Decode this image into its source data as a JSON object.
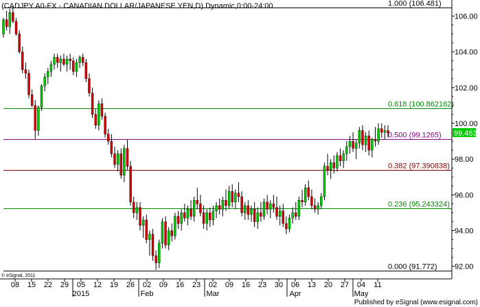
{
  "header": {
    "title": "(CADJPY A0-FX - CANADIAN DOLLAR/JAPANESE YEN,D) Dynamic,0:00-24:00"
  },
  "footer": {
    "copyright": "© eSignal, 2011",
    "published": "Published by eSignal (www.esignal.com)"
  },
  "colors": {
    "up": "#00cc00",
    "down": "#dd0000",
    "wick": "#000000",
    "grid_tick": "#000000",
    "last_price_bg": "#00cc00"
  },
  "chart_data": {
    "type": "candlestick",
    "title": "(CADJPY A0-FX - CANADIAN DOLLAR/JAPANESE YEN,D) Dynamic,0:00-24:00",
    "ylim": [
      91.3,
      106.9
    ],
    "y_ticks": [
      "106.00",
      "104.00",
      "102.00",
      "100.00",
      "98.00",
      "96.00",
      "94.00",
      "92.00"
    ],
    "x_ticks": [
      "08",
      "15",
      "22",
      "29",
      "05",
      "12",
      "19",
      "26",
      "02",
      "09",
      "16",
      "23",
      "02",
      "09",
      "16",
      "23",
      "30",
      "06",
      "13",
      "20",
      "27",
      "04",
      "11"
    ],
    "months": [
      "2015",
      "Feb",
      "Mar",
      "Apr",
      "May"
    ],
    "last_price": "99.463",
    "fib_levels": [
      {
        "label": "1.000 (106.481)",
        "value": 106.481,
        "color": "#000000"
      },
      {
        "label": "0.618 (100.862162)",
        "value": 100.862,
        "color": "#008800"
      },
      {
        "label": "0.500 (99.1265)",
        "value": 99.1265,
        "color": "#880088"
      },
      {
        "label": "0.382 (97.390838)",
        "value": 97.391,
        "color": "#880000"
      },
      {
        "label": "0.236 (95.243324)",
        "value": 95.243,
        "color": "#008800"
      },
      {
        "label": "0.000 (91.772)",
        "value": 91.772,
        "color": "#000000"
      }
    ],
    "candles": [
      [
        105.0,
        105.9,
        104.8,
        105.8
      ],
      [
        105.8,
        106.3,
        105.2,
        105.4
      ],
      [
        105.4,
        106.4,
        105.0,
        106.2
      ],
      [
        106.2,
        106.5,
        105.6,
        105.7
      ],
      [
        105.7,
        105.9,
        104.9,
        105.0
      ],
      [
        105.0,
        105.2,
        103.9,
        104.0
      ],
      [
        104.0,
        104.3,
        102.8,
        103.0
      ],
      [
        103.0,
        103.4,
        102.5,
        102.8
      ],
      [
        102.8,
        103.0,
        101.4,
        101.6
      ],
      [
        101.6,
        101.9,
        100.9,
        101.0
      ],
      [
        101.0,
        101.3,
        99.1,
        99.6
      ],
      [
        99.6,
        101.0,
        99.3,
        100.9
      ],
      [
        100.9,
        102.2,
        100.7,
        102.1
      ],
      [
        102.1,
        102.8,
        101.8,
        102.6
      ],
      [
        102.6,
        103.1,
        102.2,
        102.9
      ],
      [
        102.9,
        103.5,
        102.6,
        103.3
      ],
      [
        103.3,
        103.9,
        103.0,
        103.7
      ],
      [
        103.7,
        103.9,
        103.1,
        103.4
      ],
      [
        103.4,
        103.8,
        102.9,
        103.6
      ],
      [
        103.6,
        103.9,
        103.2,
        103.3
      ],
      [
        103.3,
        103.8,
        102.9,
        103.6
      ],
      [
        103.6,
        103.9,
        103.0,
        103.5
      ],
      [
        103.5,
        103.7,
        102.7,
        102.9
      ],
      [
        102.9,
        103.6,
        102.6,
        103.4
      ],
      [
        103.4,
        103.8,
        103.1,
        103.7
      ],
      [
        103.7,
        103.9,
        103.2,
        103.4
      ],
      [
        103.4,
        103.6,
        102.3,
        102.5
      ],
      [
        102.5,
        102.8,
        101.5,
        101.7
      ],
      [
        101.7,
        102.0,
        100.3,
        100.5
      ],
      [
        100.5,
        100.8,
        99.7,
        99.9
      ],
      [
        99.9,
        101.3,
        99.6,
        101.1
      ],
      [
        101.1,
        101.4,
        100.2,
        100.4
      ],
      [
        100.4,
        100.6,
        99.2,
        99.4
      ],
      [
        99.4,
        99.7,
        98.8,
        99.0
      ],
      [
        99.0,
        99.4,
        98.1,
        98.3
      ],
      [
        98.3,
        98.7,
        97.5,
        97.7
      ],
      [
        97.7,
        98.5,
        97.3,
        98.3
      ],
      [
        98.3,
        98.6,
        96.9,
        97.1
      ],
      [
        97.1,
        98.8,
        96.7,
        98.6
      ],
      [
        98.6,
        99.1,
        97.4,
        97.6
      ],
      [
        97.6,
        97.9,
        95.4,
        95.6
      ],
      [
        95.6,
        95.9,
        94.7,
        95.0
      ],
      [
        95.0,
        95.6,
        94.6,
        95.3
      ],
      [
        95.3,
        95.6,
        94.0,
        94.3
      ],
      [
        94.3,
        94.8,
        93.6,
        94.6
      ],
      [
        94.6,
        94.9,
        93.3,
        93.5
      ],
      [
        93.5,
        94.0,
        92.6,
        93.8
      ],
      [
        93.8,
        94.1,
        92.3,
        92.6
      ],
      [
        92.6,
        92.9,
        91.8,
        92.2
      ],
      [
        92.2,
        93.5,
        91.9,
        93.3
      ],
      [
        93.3,
        94.7,
        93.0,
        94.5
      ],
      [
        94.5,
        94.8,
        93.0,
        93.2
      ],
      [
        93.2,
        94.2,
        92.9,
        94.0
      ],
      [
        94.0,
        94.4,
        93.4,
        93.7
      ],
      [
        93.7,
        95.0,
        93.5,
        94.8
      ],
      [
        94.8,
        95.1,
        94.1,
        94.4
      ],
      [
        94.4,
        95.2,
        94.0,
        95.0
      ],
      [
        95.0,
        95.5,
        94.5,
        94.7
      ],
      [
        94.7,
        95.4,
        94.3,
        95.2
      ],
      [
        95.2,
        95.7,
        94.6,
        94.8
      ],
      [
        94.8,
        95.9,
        94.5,
        95.7
      ],
      [
        95.7,
        96.4,
        95.2,
        95.5
      ],
      [
        95.5,
        96.0,
        94.8,
        95.0
      ],
      [
        95.0,
        95.4,
        94.1,
        94.4
      ],
      [
        94.4,
        95.2,
        94.0,
        95.0
      ],
      [
        95.0,
        95.3,
        94.2,
        94.6
      ],
      [
        94.6,
        95.4,
        94.3,
        95.1
      ],
      [
        95.1,
        95.6,
        94.7,
        95.4
      ],
      [
        95.4,
        95.8,
        94.9,
        95.2
      ],
      [
        95.2,
        95.9,
        94.8,
        95.7
      ],
      [
        95.7,
        96.3,
        95.1,
        95.4
      ],
      [
        95.4,
        96.5,
        95.2,
        96.2
      ],
      [
        96.2,
        96.6,
        95.3,
        95.6
      ],
      [
        95.6,
        96.3,
        95.2,
        96.1
      ],
      [
        96.1,
        96.7,
        95.6,
        95.9
      ],
      [
        95.9,
        96.2,
        94.8,
        95.0
      ],
      [
        95.0,
        95.6,
        94.6,
        95.4
      ],
      [
        95.4,
        95.7,
        94.6,
        94.9
      ],
      [
        94.9,
        95.4,
        94.5,
        95.2
      ],
      [
        95.2,
        95.6,
        94.2,
        94.5
      ],
      [
        94.5,
        95.3,
        94.1,
        95.0
      ],
      [
        95.0,
        95.6,
        94.5,
        94.8
      ],
      [
        94.8,
        95.8,
        94.6,
        95.6
      ],
      [
        95.6,
        96.0,
        94.9,
        95.2
      ],
      [
        95.2,
        95.7,
        94.7,
        95.5
      ],
      [
        95.5,
        96.0,
        95.0,
        95.3
      ],
      [
        95.3,
        95.9,
        94.6,
        94.8
      ],
      [
        94.8,
        95.4,
        94.3,
        95.1
      ],
      [
        95.1,
        95.5,
        94.2,
        94.4
      ],
      [
        94.4,
        94.8,
        93.8,
        94.1
      ],
      [
        94.1,
        94.9,
        93.9,
        94.7
      ],
      [
        94.7,
        95.3,
        94.4,
        95.0
      ],
      [
        95.0,
        95.6,
        94.6,
        94.8
      ],
      [
        94.8,
        95.9,
        94.6,
        95.7
      ],
      [
        95.7,
        96.3,
        95.3,
        95.6
      ],
      [
        95.6,
        96.6,
        95.4,
        96.4
      ],
      [
        96.4,
        96.8,
        95.7,
        95.9
      ],
      [
        95.9,
        96.3,
        95.2,
        95.4
      ],
      [
        95.4,
        95.8,
        95.0,
        95.2
      ],
      [
        95.2,
        95.6,
        94.9,
        95.4
      ],
      [
        95.4,
        96.1,
        95.2,
        95.9
      ],
      [
        95.9,
        97.8,
        95.7,
        97.6
      ],
      [
        97.6,
        98.3,
        97.1,
        97.4
      ],
      [
        97.4,
        98.0,
        96.9,
        97.8
      ],
      [
        97.8,
        98.2,
        97.2,
        97.5
      ],
      [
        97.5,
        98.4,
        97.3,
        98.2
      ],
      [
        98.2,
        98.6,
        97.6,
        97.9
      ],
      [
        97.9,
        98.5,
        97.5,
        98.3
      ],
      [
        98.3,
        99.0,
        97.9,
        98.7
      ],
      [
        98.7,
        99.3,
        98.3,
        99.0
      ],
      [
        99.0,
        99.5,
        98.4,
        98.6
      ],
      [
        98.6,
        99.1,
        98.0,
        98.9
      ],
      [
        98.9,
        99.8,
        98.6,
        99.6
      ],
      [
        99.6,
        99.9,
        98.5,
        98.8
      ],
      [
        98.8,
        99.5,
        98.4,
        99.3
      ],
      [
        99.3,
        99.6,
        98.2,
        98.5
      ],
      [
        98.5,
        99.2,
        98.1,
        99.1
      ],
      [
        99.1,
        99.8,
        98.7,
        99.0
      ],
      [
        99.0,
        100.0,
        98.8,
        99.7
      ],
      [
        99.7,
        100.0,
        99.2,
        99.5
      ],
      [
        99.5,
        99.9,
        99.1,
        99.6
      ],
      [
        99.6,
        99.9,
        99.2,
        99.46
      ]
    ]
  }
}
